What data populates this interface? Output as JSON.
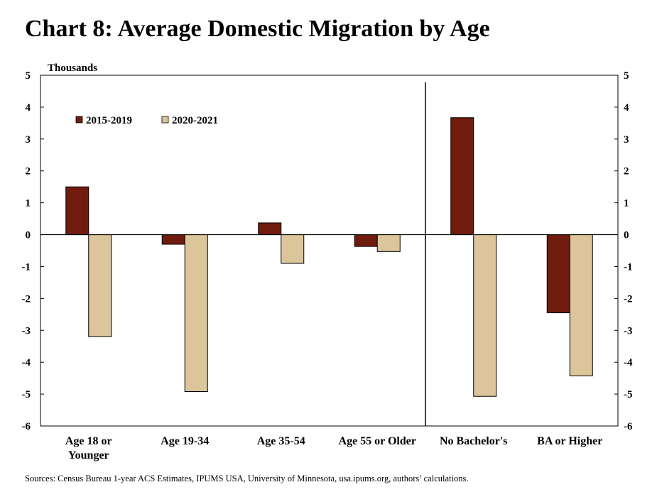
{
  "title": "Chart 8: Average Domestic Migration by Age",
  "source": "Sources: Census Bureau 1-year ACS Estimates, IPUMS USA, University of Minnesota, usa.ipums.org, authors’ calculations.",
  "colors": {
    "series_2015_2019": "#6f1c0e",
    "series_2020_2021": "#dcc59a"
  },
  "chart_data": {
    "type": "bar",
    "title": "Chart 8: Average Domestic Migration by Age",
    "unit_label": "Thousands",
    "categories": [
      "Age 18 or Younger",
      "Age 19-34",
      "Age 35-54",
      "Age 55 or Older",
      "No Bachelor's",
      "BA or Higher"
    ],
    "category_lines": [
      [
        "Age 18 or",
        "Younger"
      ],
      [
        "Age 19-34"
      ],
      [
        "Age 35-54"
      ],
      [
        "Age 55 or Older"
      ],
      [
        "No Bachelor's"
      ],
      [
        "BA or Higher"
      ]
    ],
    "series": [
      {
        "name": "2015-2019",
        "values": [
          1.5,
          -0.3,
          0.37,
          -0.37,
          3.67,
          -2.45
        ]
      },
      {
        "name": "2020-2021",
        "values": [
          -3.2,
          -4.92,
          -0.9,
          -0.53,
          -5.07,
          -4.43
        ]
      }
    ],
    "ylim": [
      -6,
      5
    ],
    "yticks": [
      5,
      4,
      3,
      2,
      1,
      0,
      -1,
      -2,
      -3,
      -4,
      -5,
      -6
    ],
    "divider_after_category": 4,
    "legend_position": "top-left",
    "grid": false
  }
}
